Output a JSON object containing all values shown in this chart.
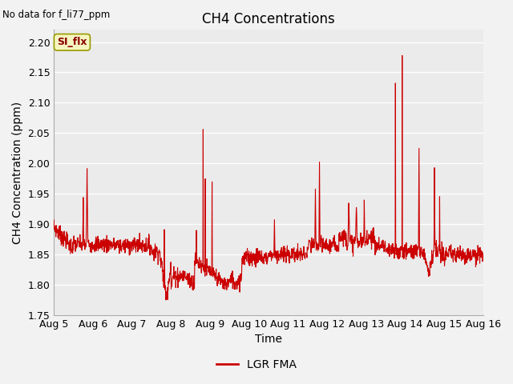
{
  "title": "CH4 Concentrations",
  "xlabel": "Time",
  "ylabel": "CH4 Concentration (ppm)",
  "top_left_text": "No data for f_li77_ppm",
  "ylim": [
    1.75,
    2.22
  ],
  "yticks": [
    1.75,
    1.8,
    1.85,
    1.9,
    1.95,
    2.0,
    2.05,
    2.1,
    2.15,
    2.2
  ],
  "line_color": "#cc0000",
  "line_width": 0.8,
  "legend_label": "LGR FMA",
  "legend_line_color": "#cc0000",
  "plot_bg_color": "#ebebeb",
  "fig_bg_color": "#f2f2f2",
  "si_flx_label": "SI_flx",
  "x_start_day": 5,
  "x_end_day": 16,
  "x_tick_days": [
    5,
    6,
    7,
    8,
    9,
    10,
    11,
    12,
    13,
    14,
    15,
    16
  ],
  "x_tick_labels": [
    "Aug 5",
    "Aug 6",
    "Aug 7",
    "Aug 8",
    "Aug 9",
    "Aug 10",
    "Aug 11",
    "Aug 12",
    "Aug 13",
    "Aug 14",
    "Aug 15",
    "Aug 16"
  ]
}
